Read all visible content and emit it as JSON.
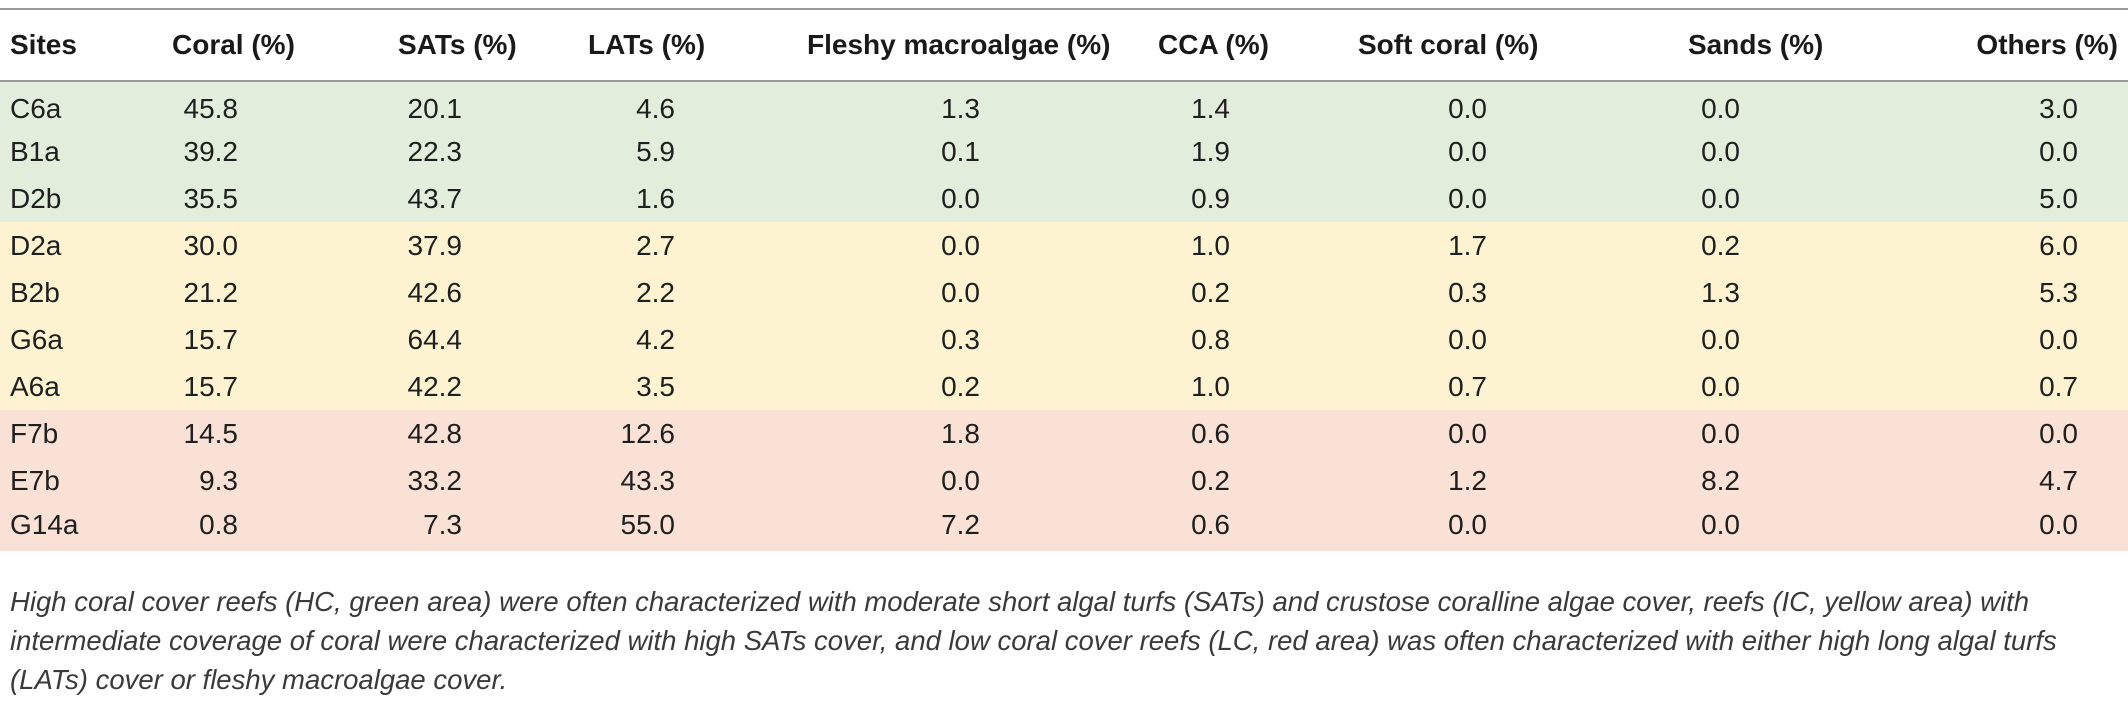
{
  "table": {
    "headers": [
      "Sites",
      "Coral (%)",
      "SATs (%)",
      "LATs (%)",
      "Fleshy macroalgae (%)",
      "CCA (%)",
      "Soft coral (%)",
      "Sands (%)",
      "Others (%)"
    ],
    "rows": [
      {
        "group": "HC",
        "cells": [
          "C6a",
          "45.8",
          "20.1",
          "4.6",
          "1.3",
          "1.4",
          "0.0",
          "0.0",
          "3.0"
        ]
      },
      {
        "group": "HC",
        "cells": [
          "B1a",
          "39.2",
          "22.3",
          "5.9",
          "0.1",
          "1.9",
          "0.0",
          "0.0",
          "0.0"
        ]
      },
      {
        "group": "HC",
        "cells": [
          "D2b",
          "35.5",
          "43.7",
          "1.6",
          "0.0",
          "0.9",
          "0.0",
          "0.0",
          "5.0"
        ]
      },
      {
        "group": "IC",
        "cells": [
          "D2a",
          "30.0",
          "37.9",
          "2.7",
          "0.0",
          "1.0",
          "1.7",
          "0.2",
          "6.0"
        ]
      },
      {
        "group": "IC",
        "cells": [
          "B2b",
          "21.2",
          "42.6",
          "2.2",
          "0.0",
          "0.2",
          "0.3",
          "1.3",
          "5.3"
        ]
      },
      {
        "group": "IC",
        "cells": [
          "G6a",
          "15.7",
          "64.4",
          "4.2",
          "0.3",
          "0.8",
          "0.0",
          "0.0",
          "0.0"
        ]
      },
      {
        "group": "IC",
        "cells": [
          "A6a",
          "15.7",
          "42.2",
          "3.5",
          "0.2",
          "1.0",
          "0.7",
          "0.0",
          "0.7"
        ]
      },
      {
        "group": "LC",
        "cells": [
          "F7b",
          "14.5",
          "42.8",
          "12.6",
          "1.8",
          "0.6",
          "0.0",
          "0.0",
          "0.0"
        ]
      },
      {
        "group": "LC",
        "cells": [
          "E7b",
          "9.3",
          "33.2",
          "43.3",
          "0.0",
          "0.2",
          "1.2",
          "8.2",
          "4.7"
        ]
      },
      {
        "group": "LC",
        "cells": [
          "G14a",
          "0.8",
          "7.3",
          "55.0",
          "7.2",
          "0.6",
          "0.0",
          "0.0",
          "0.0"
        ]
      }
    ]
  },
  "colors": {
    "HC": "#e2eedb",
    "IC": "#fdf3d1",
    "LC": "#f9e1d5"
  },
  "caption": "High coral cover reefs (HC, green area) were often characterized with moderate short algal turfs (SATs) and crustose coralline algae cover, reefs (IC, yellow area) with intermediate coverage of coral were characterized with high SATs cover, and low coral cover reefs (LC, red area) was often characterized with either high long algal turfs (LATs) cover or fleshy macroalgae cover."
}
